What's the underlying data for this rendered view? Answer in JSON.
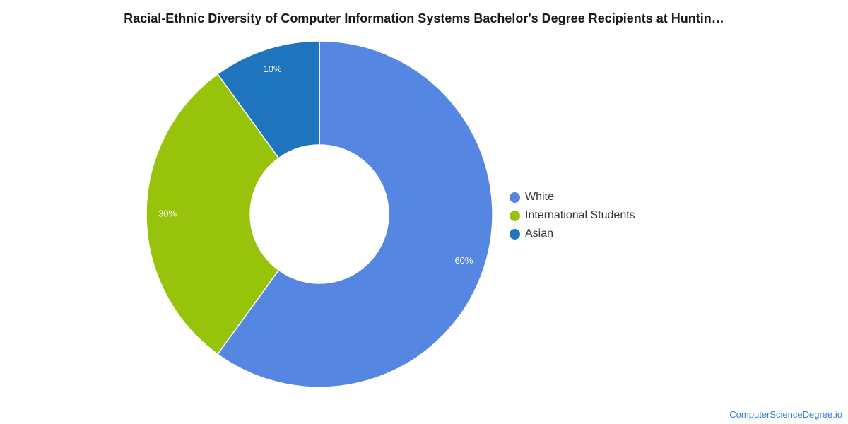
{
  "chart_data": {
    "type": "pie",
    "title": "Racial-Ethnic Diversity of Computer Information Systems Bachelor's Degree Recipients at Huntin…",
    "donut": true,
    "slices": [
      {
        "name": "White",
        "value": 60,
        "label": "60%",
        "color": "#5486e2"
      },
      {
        "name": "International Students",
        "value": 30,
        "label": "30%",
        "color": "#97c30a"
      },
      {
        "name": "Asian",
        "value": 10,
        "label": "10%",
        "color": "#1f74be"
      }
    ],
    "legend": {
      "placement": "right"
    }
  },
  "footer": {
    "source": "ComputerScienceDegree.io"
  }
}
